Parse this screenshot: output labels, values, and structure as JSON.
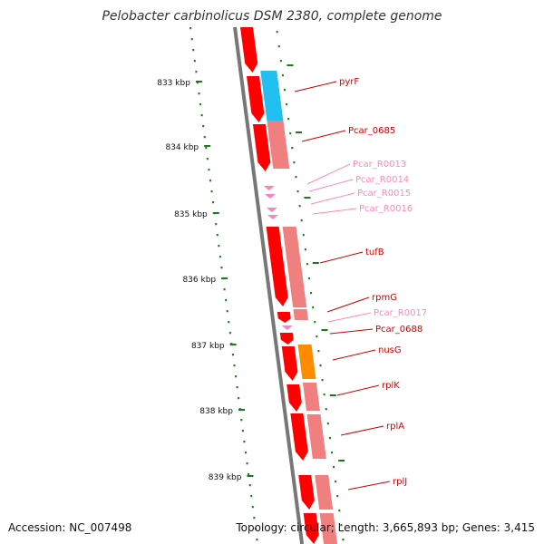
{
  "title": "Pelobacter carbinolicus DSM 2380, complete genome",
  "accession": "Accession: NC_007498",
  "topology": "Topology: circular; Length: 3,665,893 bp; Genes: 3,415",
  "colors": {
    "backbone": "#777777",
    "tick": "#1a7a1a",
    "cds_forward": "#ff0000",
    "cds_track": "#f08080",
    "blue": "#22c0f0",
    "orange": "#ff8c00",
    "rna": "#ff80c0",
    "cds_label": "#cc0000",
    "rna_label": "#ff88bb"
  },
  "kbp_labels": [
    "833 kbp",
    "834 kbp",
    "835 kbp",
    "836 kbp",
    "837 kbp",
    "838 kbp",
    "839 kbp"
  ],
  "genes": [
    {
      "label": "pyrF",
      "type": "cds"
    },
    {
      "label": "Pcar_0685",
      "type": "cds"
    },
    {
      "label": "Pcar_R0013",
      "type": "rna"
    },
    {
      "label": "Pcar_R0014",
      "type": "rna"
    },
    {
      "label": "Pcar_R0015",
      "type": "rna"
    },
    {
      "label": "Pcar_R0016",
      "type": "rna"
    },
    {
      "label": "tufB",
      "type": "cds"
    },
    {
      "label": "rpmG",
      "type": "cds"
    },
    {
      "label": "Pcar_R0017",
      "type": "rna"
    },
    {
      "label": "Pcar_0688",
      "type": "cds"
    },
    {
      "label": "nusG",
      "type": "cds"
    },
    {
      "label": "rplK",
      "type": "cds"
    },
    {
      "label": "rplA",
      "type": "cds"
    },
    {
      "label": "rplJ",
      "type": "cds"
    }
  ]
}
